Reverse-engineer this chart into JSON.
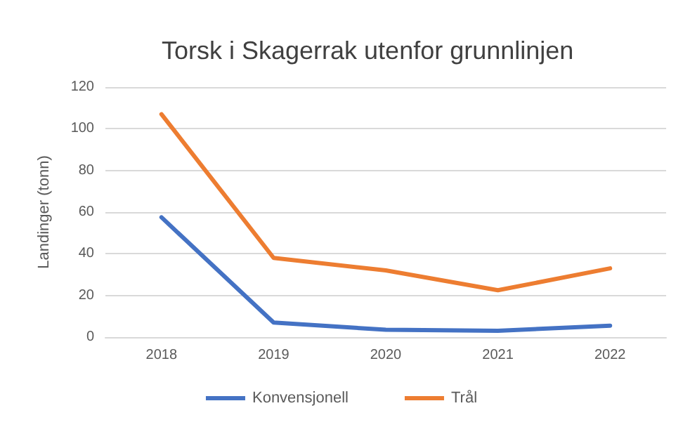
{
  "chart_data": {
    "type": "line",
    "title": "Torsk i Skagerrak utenfor grunnlinjen",
    "ylabel": "Landinger (tonn)",
    "categories": [
      "2018",
      "2019",
      "2020",
      "2021",
      "2022"
    ],
    "series": [
      {
        "name": "Konvensjonell",
        "color": "#4472c4",
        "values": [
          57.5,
          7,
          3.5,
          3,
          5.5
        ]
      },
      {
        "name": "Trål",
        "color": "#ed7d31",
        "values": [
          107,
          38,
          32,
          22.5,
          33
        ]
      }
    ],
    "ylim": [
      0,
      120
    ],
    "yticks": [
      0,
      20,
      40,
      60,
      80,
      100,
      120
    ],
    "grid": "y",
    "legend": "bottom",
    "marker": "none",
    "line_style": "solid"
  }
}
